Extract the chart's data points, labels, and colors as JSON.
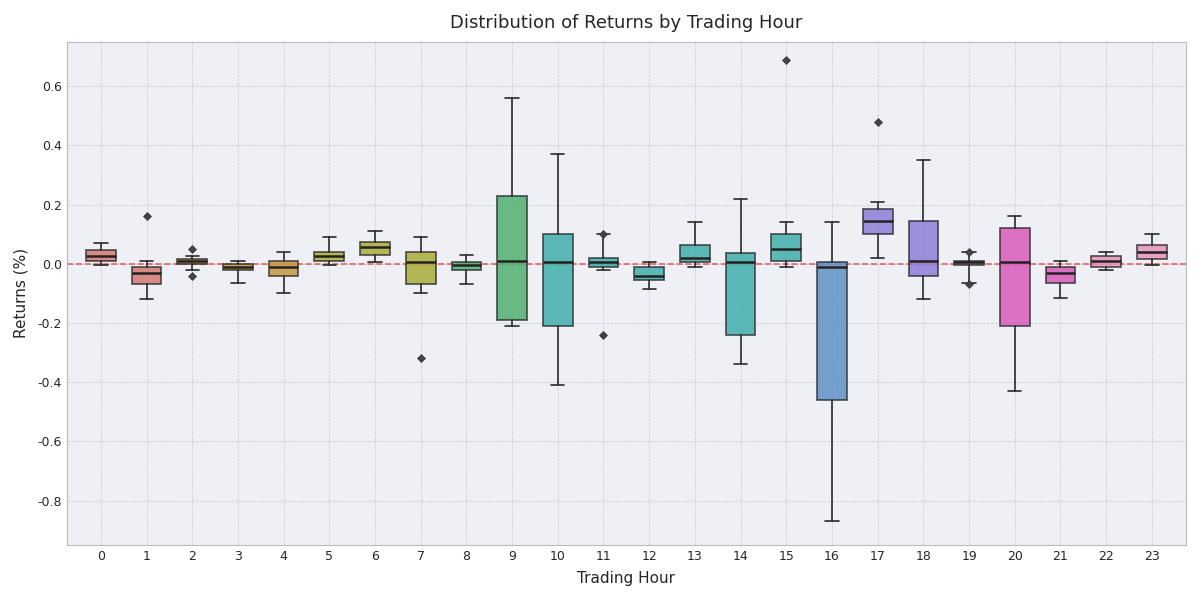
{
  "title": "Distribution of Returns by Trading Hour",
  "xlabel": "Trading Hour",
  "ylabel": "Returns (%)",
  "reference_line_color": "#e05555",
  "boxes": [
    {
      "hour": 0,
      "q1": 0.01,
      "med": 0.025,
      "q3": 0.045,
      "whisk_lo": -0.005,
      "whisk_hi": 0.07,
      "fliers": []
    },
    {
      "hour": 1,
      "q1": -0.07,
      "med": -0.03,
      "q3": -0.01,
      "whisk_lo": -0.12,
      "whisk_hi": 0.01,
      "fliers": [
        0.16
      ]
    },
    {
      "hour": 2,
      "q1": 0.0,
      "med": 0.01,
      "q3": 0.015,
      "whisk_lo": -0.02,
      "whisk_hi": 0.025,
      "fliers": [
        0.05,
        -0.04
      ]
    },
    {
      "hour": 3,
      "q1": -0.02,
      "med": -0.01,
      "q3": 0.0,
      "whisk_lo": -0.065,
      "whisk_hi": 0.01,
      "fliers": []
    },
    {
      "hour": 4,
      "q1": -0.04,
      "med": -0.01,
      "q3": 0.01,
      "whisk_lo": -0.1,
      "whisk_hi": 0.04,
      "fliers": []
    },
    {
      "hour": 5,
      "q1": 0.01,
      "med": 0.025,
      "q3": 0.04,
      "whisk_lo": -0.005,
      "whisk_hi": 0.09,
      "fliers": []
    },
    {
      "hour": 6,
      "q1": 0.03,
      "med": 0.055,
      "q3": 0.075,
      "whisk_lo": 0.005,
      "whisk_hi": 0.11,
      "fliers": []
    },
    {
      "hour": 7,
      "q1": -0.07,
      "med": 0.005,
      "q3": 0.04,
      "whisk_lo": -0.1,
      "whisk_hi": 0.09,
      "fliers": [
        -0.32
      ]
    },
    {
      "hour": 8,
      "q1": -0.02,
      "med": -0.005,
      "q3": 0.005,
      "whisk_lo": -0.07,
      "whisk_hi": 0.03,
      "fliers": []
    },
    {
      "hour": 9,
      "q1": -0.19,
      "med": 0.01,
      "q3": 0.23,
      "whisk_lo": -0.21,
      "whisk_hi": 0.56,
      "fliers": []
    },
    {
      "hour": 10,
      "q1": -0.21,
      "med": 0.005,
      "q3": 0.1,
      "whisk_lo": -0.41,
      "whisk_hi": 0.37,
      "fliers": []
    },
    {
      "hour": 11,
      "q1": -0.01,
      "med": 0.005,
      "q3": 0.02,
      "whisk_lo": -0.02,
      "whisk_hi": 0.1,
      "fliers": [
        -0.24,
        0.1
      ]
    },
    {
      "hour": 12,
      "q1": -0.055,
      "med": -0.04,
      "q3": -0.01,
      "whisk_lo": -0.085,
      "whisk_hi": 0.005,
      "fliers": []
    },
    {
      "hour": 13,
      "q1": 0.005,
      "med": 0.02,
      "q3": 0.065,
      "whisk_lo": -0.01,
      "whisk_hi": 0.14,
      "fliers": []
    },
    {
      "hour": 14,
      "q1": -0.24,
      "med": 0.005,
      "q3": 0.035,
      "whisk_lo": -0.34,
      "whisk_hi": 0.22,
      "fliers": []
    },
    {
      "hour": 15,
      "q1": 0.01,
      "med": 0.05,
      "q3": 0.1,
      "whisk_lo": -0.01,
      "whisk_hi": 0.14,
      "fliers": [
        0.69
      ]
    },
    {
      "hour": 16,
      "q1": -0.46,
      "med": -0.01,
      "q3": 0.005,
      "whisk_lo": -0.87,
      "whisk_hi": 0.14,
      "fliers": []
    },
    {
      "hour": 17,
      "q1": 0.1,
      "med": 0.145,
      "q3": 0.185,
      "whisk_lo": 0.02,
      "whisk_hi": 0.21,
      "fliers": [
        0.48
      ]
    },
    {
      "hour": 18,
      "q1": -0.04,
      "med": 0.01,
      "q3": 0.145,
      "whisk_lo": -0.12,
      "whisk_hi": 0.35,
      "fliers": []
    },
    {
      "hour": 19,
      "q1": -0.005,
      "med": 0.005,
      "q3": 0.01,
      "whisk_lo": -0.065,
      "whisk_hi": 0.04,
      "fliers": [
        0.04,
        -0.07
      ]
    },
    {
      "hour": 20,
      "q1": -0.21,
      "med": 0.005,
      "q3": 0.12,
      "whisk_lo": -0.43,
      "whisk_hi": 0.16,
      "fliers": []
    },
    {
      "hour": 21,
      "q1": -0.065,
      "med": -0.03,
      "q3": -0.01,
      "whisk_lo": -0.115,
      "whisk_hi": 0.01,
      "fliers": []
    },
    {
      "hour": 22,
      "q1": -0.01,
      "med": 0.01,
      "q3": 0.025,
      "whisk_lo": -0.02,
      "whisk_hi": 0.04,
      "fliers": []
    },
    {
      "hour": 23,
      "q1": 0.015,
      "med": 0.04,
      "q3": 0.065,
      "whisk_lo": -0.005,
      "whisk_hi": 0.1,
      "fliers": []
    }
  ],
  "hour_colors": {
    "0": "#d4756b",
    "1": "#d4756b",
    "2": "#c4943a",
    "3": "#c4943a",
    "4": "#c4943a",
    "5": "#a8a832",
    "6": "#a8a832",
    "7": "#a8a832",
    "8": "#4aad6a",
    "9": "#4aad6a",
    "10": "#3aada8",
    "11": "#3aada8",
    "12": "#3aada8",
    "13": "#3aada8",
    "14": "#3aada8",
    "15": "#3aada8",
    "16": "#5b8ec4",
    "17": "#8b78d8",
    "18": "#8b78d8",
    "19": "#8b78d8",
    "20": "#d855b8",
    "21": "#d855b8",
    "22": "#e890b8",
    "23": "#e890b8"
  }
}
